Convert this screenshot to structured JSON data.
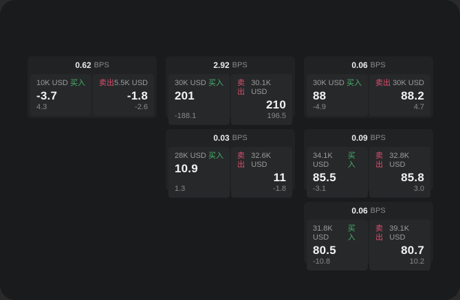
{
  "page": {
    "background_outer": "#2a2a2a",
    "panel_background": "#1a1b1c",
    "card_background": "#212223",
    "subpanel_background": "#27282a"
  },
  "labels": {
    "bps_unit": "BPS",
    "buy": "买入",
    "sell": "卖出"
  },
  "colors": {
    "buy_accent": "#45b36b",
    "sell_accent": "#d9506d"
  },
  "cards": [
    {
      "bps": "0.62",
      "buy": {
        "amount": "10K USD",
        "price": "-3.7",
        "delta": "4.3"
      },
      "sell": {
        "amount": "5.5K USD",
        "price": "-1.8",
        "delta": "-2.6"
      }
    },
    {
      "bps": "2.92",
      "buy": {
        "amount": "30K USD",
        "price": "201",
        "delta": "-188.1"
      },
      "sell": {
        "amount": "30.1K USD",
        "price": "210",
        "delta": "196.5"
      }
    },
    {
      "bps": "0.06",
      "buy": {
        "amount": "30K USD",
        "price": "88",
        "delta": "-4.9"
      },
      "sell": {
        "amount": "30K USD",
        "price": "88.2",
        "delta": "4.7"
      }
    },
    {
      "bps": "0.03",
      "buy": {
        "amount": "28K USD",
        "price": "10.9",
        "delta": "1.3"
      },
      "sell": {
        "amount": "32.6K USD",
        "price": "11",
        "delta": "-1.8"
      }
    },
    {
      "bps": "0.09",
      "buy": {
        "amount": "34.1K USD",
        "price": "85.5",
        "delta": "-3.1"
      },
      "sell": {
        "amount": "32.8K USD",
        "price": "85.8",
        "delta": "3.0"
      }
    },
    {
      "bps": "0.06",
      "buy": {
        "amount": "31.8K USD",
        "price": "80.5",
        "delta": "-10.8"
      },
      "sell": {
        "amount": "39.1K USD",
        "price": "80.7",
        "delta": "10.2"
      }
    }
  ]
}
